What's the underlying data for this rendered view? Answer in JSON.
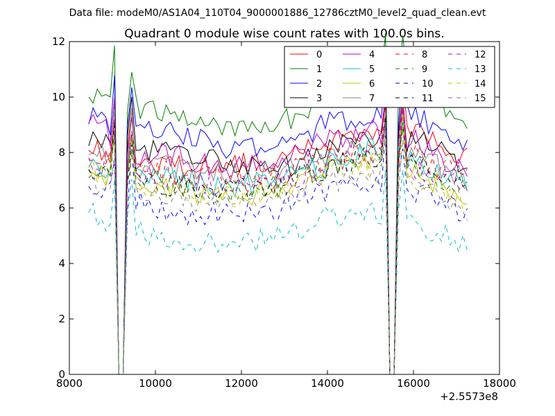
{
  "chart_data": {
    "type": "line",
    "suptitle": "Data file: modeM0/AS1A04_110T04_9000001886_12786cztM0_level2_quad_clean.evt",
    "title": "Quadrant 0 module wise count rates with 100.0s bins.",
    "xlabel": "",
    "ylabel": "",
    "xlim": [
      8000,
      18000
    ],
    "ylim": [
      0,
      12
    ],
    "x_offset_label": "+2.5573e8",
    "x_ticks": [
      8000,
      10000,
      12000,
      14000,
      16000,
      18000
    ],
    "x_tick_labels": [
      "8000",
      "10000",
      "12000",
      "14000",
      "16000",
      "18000"
    ],
    "y_ticks": [
      0,
      2,
      4,
      6,
      8,
      10,
      12
    ],
    "y_tick_labels": [
      "0",
      "2",
      "4",
      "6",
      "8",
      "10",
      "12"
    ],
    "grid": false,
    "legend_position": "upper-right",
    "legend_columns": 4,
    "x_range": [
      8450,
      17250
    ],
    "bin_width": 100,
    "gaps": [
      [
        9150,
        9250
      ],
      [
        15450,
        15550
      ]
    ],
    "series": [
      {
        "name": "0",
        "color": "#ff0000",
        "dash": "solid",
        "levels": [
          8.3,
          7.6,
          7.5,
          7.6,
          7.7,
          8.4,
          8.6,
          8.7,
          7.8
        ]
      },
      {
        "name": "1",
        "color": "#008000",
        "dash": "solid",
        "levels": [
          10.2,
          9.6,
          9.4,
          8.8,
          9.0,
          9.8,
          10.3,
          10.4,
          8.6
        ]
      },
      {
        "name": "2",
        "color": "#0000ff",
        "dash": "solid",
        "levels": [
          9.2,
          8.8,
          8.6,
          8.2,
          8.3,
          9.0,
          9.4,
          9.3,
          8.3
        ]
      },
      {
        "name": "3",
        "color": "#000000",
        "dash": "solid",
        "levels": [
          8.4,
          8.2,
          8.0,
          7.6,
          7.4,
          8.0,
          8.6,
          8.4,
          7.4
        ]
      },
      {
        "name": "4",
        "color": "#bf00bf",
        "dash": "solid",
        "levels": [
          9.2,
          8.0,
          7.8,
          7.4,
          7.6,
          8.4,
          8.8,
          8.4,
          7.2
        ]
      },
      {
        "name": "5",
        "color": "#00bfbf",
        "dash": "solid",
        "levels": [
          7.6,
          7.2,
          7.0,
          6.8,
          6.9,
          7.6,
          8.2,
          7.6,
          6.8
        ]
      },
      {
        "name": "6",
        "color": "#bfbf00",
        "dash": "solid",
        "levels": [
          7.2,
          6.8,
          6.6,
          6.4,
          6.6,
          7.4,
          7.8,
          7.2,
          6.4
        ]
      },
      {
        "name": "7",
        "color": "#808080",
        "dash": "solid",
        "levels": [
          8.0,
          7.6,
          7.4,
          7.2,
          7.3,
          7.8,
          8.2,
          7.8,
          7.0
        ]
      },
      {
        "name": "8",
        "color": "#ff0000",
        "dash": "dashed",
        "levels": [
          7.8,
          7.4,
          7.2,
          7.0,
          7.1,
          7.8,
          8.2,
          7.8,
          7.0
        ]
      },
      {
        "name": "9",
        "color": "#008000",
        "dash": "dashed",
        "levels": [
          7.4,
          7.0,
          6.8,
          6.6,
          6.8,
          7.4,
          7.8,
          7.4,
          6.6
        ]
      },
      {
        "name": "10",
        "color": "#0000ff",
        "dash": "dashed",
        "levels": [
          6.8,
          6.2,
          5.8,
          5.9,
          6.0,
          6.6,
          7.0,
          6.6,
          5.8
        ]
      },
      {
        "name": "11",
        "color": "#000000",
        "dash": "dashed",
        "levels": [
          7.4,
          7.0,
          6.8,
          6.6,
          6.8,
          7.4,
          7.8,
          7.6,
          6.8
        ]
      },
      {
        "name": "12",
        "color": "#bf00bf",
        "dash": "dashed",
        "levels": [
          7.8,
          7.2,
          7.0,
          6.8,
          6.9,
          7.6,
          8.0,
          7.4,
          6.6
        ]
      },
      {
        "name": "13",
        "color": "#00bfbf",
        "dash": "dashed",
        "levels": [
          5.8,
          5.2,
          4.8,
          4.6,
          5.0,
          5.6,
          5.8,
          5.4,
          4.6
        ]
      },
      {
        "name": "14",
        "color": "#bfbf00",
        "dash": "dashed",
        "levels": [
          7.4,
          6.8,
          6.6,
          6.4,
          6.6,
          7.2,
          7.6,
          7.0,
          6.2
        ]
      },
      {
        "name": "15",
        "color": "#808080",
        "dash": "dashed",
        "levels": [
          7.0,
          6.6,
          6.3,
          6.1,
          6.3,
          6.9,
          7.2,
          6.8,
          5.9
        ]
      }
    ]
  }
}
